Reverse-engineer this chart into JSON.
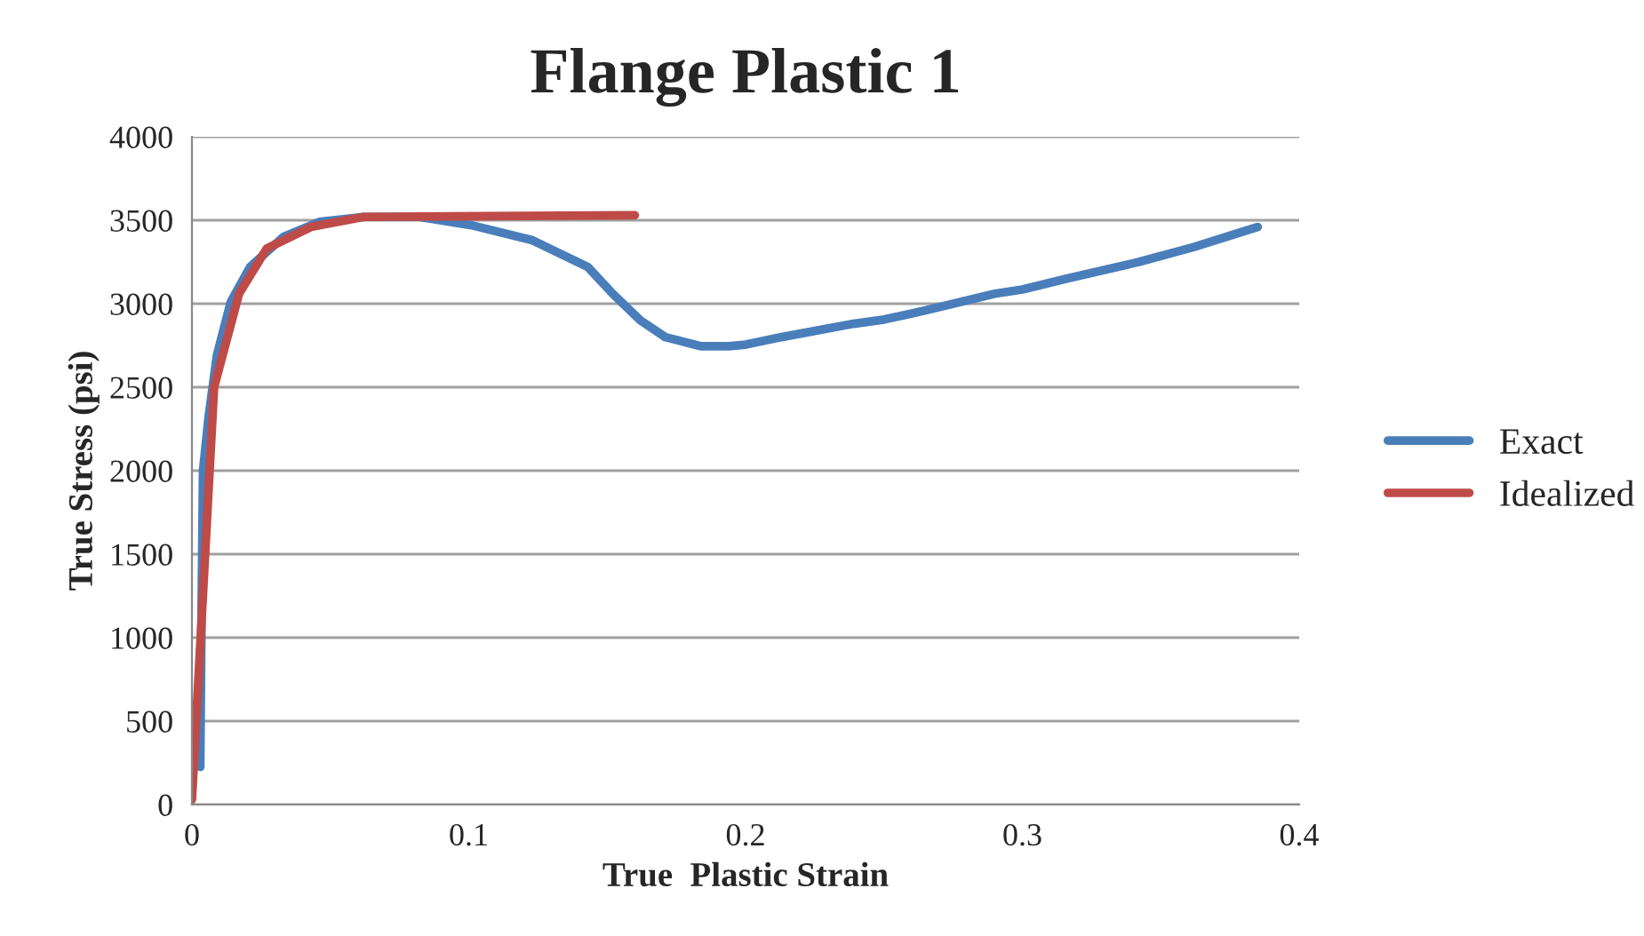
{
  "chart_data": {
    "type": "line",
    "title": "Flange Plastic 1",
    "xlabel": "True  Plastic Strain",
    "ylabel": "True Stress (psi)",
    "xlim": [
      0,
      0.4
    ],
    "xticks": [
      0,
      0.1,
      0.2,
      0.3,
      0.4
    ],
    "ylim": [
      0,
      4000
    ],
    "yticks": [
      0,
      500,
      1000,
      1500,
      2000,
      2500,
      3000,
      3500,
      4000
    ],
    "grid": "y",
    "legend": "right",
    "marker": "none",
    "line_style": "solid",
    "series": [
      {
        "name": "Exact",
        "color": "#4a7ebb",
        "x": [
          0.003,
          0.0035,
          0.004,
          0.006,
          0.009,
          0.014,
          0.021,
          0.033,
          0.046,
          0.062,
          0.082,
          0.101,
          0.123,
          0.143,
          0.152,
          0.162,
          0.171,
          0.184,
          0.194,
          0.2,
          0.213,
          0.239,
          0.25,
          0.265,
          0.29,
          0.3,
          0.316,
          0.342,
          0.362,
          0.385
        ],
        "values": [
          225,
          1200,
          2000,
          2320,
          2690,
          3010,
          3220,
          3400,
          3490,
          3520,
          3520,
          3470,
          3380,
          3220,
          3060,
          2900,
          2800,
          2745,
          2745,
          2755,
          2800,
          2880,
          2905,
          2960,
          3060,
          3085,
          3150,
          3250,
          3340,
          3460
        ]
      },
      {
        "name": "Idealized",
        "color": "#be4b48",
        "x": [
          0,
          0.008,
          0.017,
          0.027,
          0.043,
          0.062,
          0.16
        ],
        "values": [
          30,
          2500,
          3060,
          3330,
          3460,
          3520,
          3530
        ]
      }
    ]
  }
}
